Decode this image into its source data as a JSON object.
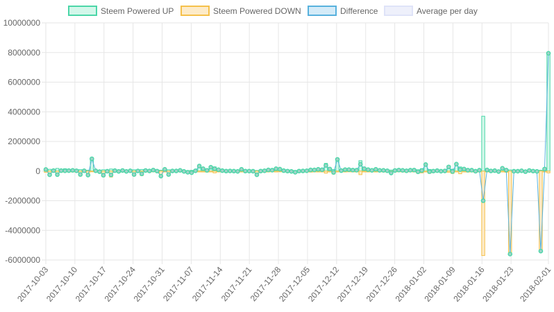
{
  "colors": {
    "up_stroke": "#4bd6a8",
    "up_fill": "#d3f7ea",
    "down_stroke": "#f5c04a",
    "down_fill": "#fdebc8",
    "diff_stroke": "#57b1dd",
    "diff_fill": "#d4ebf8",
    "diff_point_fill": "#9fd3c8",
    "avg_stroke": "#dfe3f8",
    "avg_fill": "#eef0fb"
  },
  "chart_data": {
    "type": "bar",
    "legend_position": "top",
    "grid": true,
    "x_start": "2017-10-03",
    "x_end": "2018-02-01",
    "ylim": [
      -6000000,
      10000000
    ],
    "x_tick_labels": [
      "2017-10-03",
      "2017-10-10",
      "2017-10-17",
      "2017-10-24",
      "2017-10-31",
      "2017-11-07",
      "2017-11-14",
      "2017-11-21",
      "2017-11-28",
      "2017-12-05",
      "2017-12-12",
      "2017-12-19",
      "2017-12-26",
      "2018-01-02",
      "2018-01-09",
      "2018-01-16",
      "2018-01-23",
      "2018-02-01"
    ],
    "y_tick_labels": [
      "10000000",
      "8000000",
      "6000000",
      "4000000",
      "2000000",
      "0",
      "-2000000",
      "-4000000",
      "-6000000"
    ],
    "y_tick_values": [
      10000000,
      8000000,
      6000000,
      4000000,
      2000000,
      0,
      -2000000,
      -4000000,
      -6000000
    ],
    "series": [
      {
        "name": "Steem Powered UP",
        "values": [
          60000,
          120000,
          40000,
          180000,
          50000,
          160000,
          80000,
          110000,
          60000,
          100000,
          70000,
          60000,
          880000,
          80000,
          60000,
          90000,
          50000,
          140000,
          90000,
          70000,
          100000,
          60000,
          80000,
          90000,
          70000,
          110000,
          100000,
          80000,
          120000,
          70000,
          60000,
          180000,
          90000,
          60000,
          70000,
          100000,
          40000,
          30000,
          50000,
          80000,
          400000,
          220000,
          120000,
          320000,
          280000,
          150000,
          80000,
          60000,
          90000,
          60000,
          60000,
          180000,
          70000,
          60000,
          70000,
          40000,
          60000,
          90000,
          140000,
          110000,
          220000,
          180000,
          90000,
          70000,
          60000,
          40000,
          60000,
          80000,
          70000,
          150000,
          140000,
          180000,
          150000,
          520000,
          200000,
          110000,
          850000,
          80000,
          160000,
          150000,
          130000,
          120000,
          700000,
          220000,
          160000,
          100000,
          180000,
          100000,
          110000,
          80000,
          70000,
          100000,
          120000,
          110000,
          90000,
          110000,
          130000,
          90000,
          160000,
          500000,
          110000,
          80000,
          90000,
          60000,
          70000,
          360000,
          130000,
          530000,
          280000,
          200000,
          130000,
          120000,
          70000,
          120000,
          3700000,
          140000,
          80000,
          90000,
          40000,
          250000,
          150000,
          80000,
          50000,
          60000,
          80000,
          40000,
          100000,
          60000,
          50000,
          60000,
          200000,
          8000000
        ]
      },
      {
        "name": "Steem Powered DOWN",
        "values": [
          -80000,
          -320000,
          -60000,
          -300000,
          -70000,
          -60000,
          -50000,
          -60000,
          -40000,
          -330000,
          -50000,
          -330000,
          -50000,
          -60000,
          -100000,
          -370000,
          -60000,
          -400000,
          -60000,
          -90000,
          -60000,
          -80000,
          -60000,
          -320000,
          -60000,
          -300000,
          -60000,
          -70000,
          -50000,
          -70000,
          -400000,
          -60000,
          -320000,
          -50000,
          -60000,
          -50000,
          -60000,
          -110000,
          -160000,
          -60000,
          -60000,
          -60000,
          -70000,
          -60000,
          -120000,
          -60000,
          -50000,
          -60000,
          -80000,
          -60000,
          -80000,
          -60000,
          -70000,
          -60000,
          -80000,
          -290000,
          -60000,
          -70000,
          -60000,
          -50000,
          -60000,
          -50000,
          -60000,
          -70000,
          -80000,
          -120000,
          -60000,
          -70000,
          -50000,
          -70000,
          -60000,
          -60000,
          -60000,
          -140000,
          -60000,
          -200000,
          -60000,
          -50000,
          -60000,
          -50000,
          -60000,
          -60000,
          -240000,
          -60000,
          -60000,
          -50000,
          -60000,
          -50000,
          -60000,
          -60000,
          -200000,
          -60000,
          -50000,
          -60000,
          -70000,
          -50000,
          -60000,
          -140000,
          -120000,
          -60000,
          -150000,
          -80000,
          -60000,
          -70000,
          -60000,
          -80000,
          -160000,
          -60000,
          -180000,
          -60000,
          -70000,
          -60000,
          -80000,
          -60000,
          -5700000,
          -60000,
          -70000,
          -60000,
          -70000,
          -60000,
          -80000,
          -5600000,
          -60000,
          -70000,
          -60000,
          -80000,
          -60000,
          -60000,
          -70000,
          -5400000,
          -60000,
          -120000
        ]
      },
      {
        "name": "Difference",
        "values": [
          110000,
          -250000,
          30000,
          -240000,
          30000,
          20000,
          30000,
          50000,
          20000,
          -230000,
          20000,
          -270000,
          830000,
          20000,
          -40000,
          -280000,
          -10000,
          -260000,
          30000,
          -20000,
          40000,
          -20000,
          20000,
          -230000,
          10000,
          -190000,
          40000,
          10000,
          70000,
          0,
          -340000,
          120000,
          -230000,
          10000,
          10000,
          50000,
          -20000,
          -80000,
          -110000,
          20000,
          340000,
          160000,
          50000,
          260000,
          160000,
          90000,
          30000,
          0,
          10000,
          0,
          -20000,
          120000,
          0,
          0,
          -10000,
          -250000,
          0,
          20000,
          80000,
          60000,
          160000,
          130000,
          30000,
          0,
          -20000,
          -80000,
          0,
          10000,
          20000,
          80000,
          80000,
          120000,
          90000,
          380000,
          140000,
          -90000,
          790000,
          30000,
          100000,
          100000,
          70000,
          60000,
          460000,
          160000,
          100000,
          50000,
          120000,
          50000,
          50000,
          20000,
          -130000,
          40000,
          70000,
          50000,
          20000,
          60000,
          70000,
          -50000,
          40000,
          440000,
          -40000,
          0,
          30000,
          -10000,
          10000,
          280000,
          -30000,
          470000,
          100000,
          140000,
          60000,
          60000,
          -10000,
          60000,
          -2000000,
          80000,
          10000,
          30000,
          -30000,
          190000,
          70000,
          -5600000,
          -10000,
          -10000,
          20000,
          -40000,
          40000,
          0,
          -20000,
          -5400000,
          140000,
          7950000
        ]
      },
      {
        "name": "Average per day",
        "values": []
      }
    ]
  }
}
